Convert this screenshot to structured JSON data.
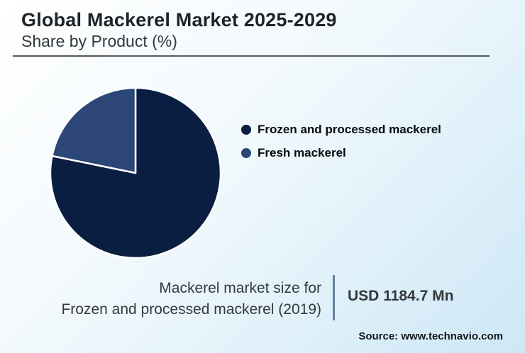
{
  "header": {
    "title": "Global Mackerel Market 2025-2029",
    "subtitle": "Share by Product (%)"
  },
  "chart_data": {
    "type": "pie",
    "title": "Global Mackerel Market 2025-2029",
    "subtitle": "Share by Product (%)",
    "categories": [
      "Frozen and processed mackerel",
      "Fresh mackerel"
    ],
    "values": [
      78.2,
      21.8
    ],
    "unit": "percent",
    "colors": [
      "#0a1e42",
      "#2c4677"
    ],
    "slice_stroke": "#ffffff",
    "start_angle_deg": 0,
    "direction": "clockwise",
    "legend_position": "right",
    "data_labels": "none"
  },
  "footnote": {
    "label_line1": "Mackerel market size for",
    "label_line2": "Frozen and processed mackerel (2019)",
    "value": "USD 1184.7 Mn"
  },
  "source": {
    "text": "Source: www.technavio.com"
  },
  "style_colors": {
    "background_start": "#ffffff",
    "background_end": "#cde8f6",
    "title_rule": "#55595d",
    "divider": "#66819e"
  }
}
